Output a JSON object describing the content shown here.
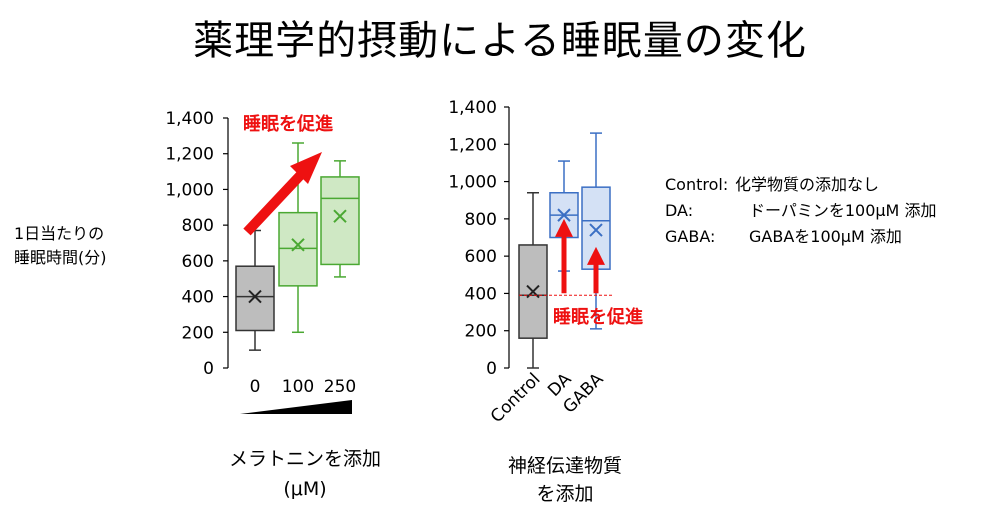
{
  "title": "薬理学的摂動による睡眠量の変化",
  "y_axis_label_lines": [
    "1日当たりの",
    "睡眠時間(分)"
  ],
  "colors": {
    "gray": "#888888",
    "green": "#4aa832",
    "blue": "#3b6fc4",
    "red": "#ee1111"
  },
  "chart_data": [
    {
      "type": "box",
      "xlabel_lines": [
        "メラトニンを添加",
        "(μM)"
      ],
      "ylabel": "1日当たりの睡眠時間(分)",
      "ylim": [
        0,
        1400
      ],
      "yticks": [
        "0",
        "200",
        "400",
        "600",
        "800",
        "1,000",
        "1,200",
        "1,400"
      ],
      "ytick_values": [
        0,
        200,
        400,
        600,
        800,
        1000,
        1200,
        1400
      ],
      "categories": [
        "0",
        "100",
        "250"
      ],
      "boxes": [
        {
          "category": "0",
          "min": 100,
          "q1": 210,
          "median": 400,
          "q3": 570,
          "max": 770,
          "mean": 400,
          "color": "gray"
        },
        {
          "category": "100",
          "min": 200,
          "q1": 460,
          "median": 670,
          "q3": 870,
          "max": 1260,
          "mean": 690,
          "color": "green"
        },
        {
          "category": "250",
          "min": 510,
          "q1": 580,
          "median": 950,
          "q3": 1070,
          "max": 1160,
          "mean": 850,
          "color": "green"
        }
      ],
      "annotation": "睡眠を促進",
      "concentration_wedge": "increasing"
    },
    {
      "type": "box",
      "xlabel_lines": [
        "神経伝達物質",
        "を添加"
      ],
      "ylabel": "1日当たりの睡眠時間(分)",
      "ylim": [
        0,
        1400
      ],
      "yticks": [
        "0",
        "200",
        "400",
        "600",
        "800",
        "1,000",
        "1,200",
        "1,400"
      ],
      "ytick_values": [
        0,
        200,
        400,
        600,
        800,
        1000,
        1200,
        1400
      ],
      "categories": [
        "Control",
        "DA",
        "GABA"
      ],
      "boxes": [
        {
          "category": "Control",
          "min": 0,
          "q1": 160,
          "median": 390,
          "q3": 660,
          "max": 940,
          "mean": 410,
          "color": "gray"
        },
        {
          "category": "DA",
          "min": 520,
          "q1": 700,
          "median": 820,
          "q3": 940,
          "max": 1110,
          "mean": 820,
          "color": "blue"
        },
        {
          "category": "GABA",
          "min": 210,
          "q1": 530,
          "median": 790,
          "q3": 970,
          "max": 1260,
          "mean": 740,
          "color": "blue"
        }
      ],
      "reference_line": 390,
      "annotation": "睡眠を促進"
    }
  ],
  "legend": [
    {
      "key": "Control:",
      "value": "化学物質の添加なし"
    },
    {
      "key": "DA:",
      "value": "ドーパミンを100μM 添加"
    },
    {
      "key": "GABA:",
      "value": "GABAを100μM 添加"
    }
  ]
}
